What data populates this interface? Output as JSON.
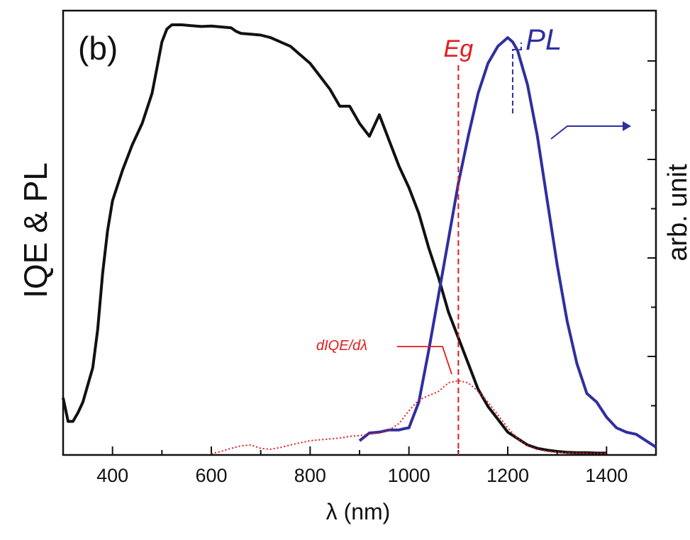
{
  "chart_data": {
    "type": "line",
    "panel_label": "(b)",
    "xlabel": "λ (nm)",
    "ylabel_left": "IQE & PL",
    "ylabel_right": "arb. unit",
    "xlim": [
      300,
      1500
    ],
    "ylim": [
      0,
      1.0
    ],
    "x_ticks": [
      400,
      600,
      800,
      1000,
      1200,
      1400
    ],
    "grid": false,
    "series": [
      {
        "name": "IQE",
        "color": "#111111",
        "style": "solid",
        "x": [
          300,
          310,
          320,
          330,
          340,
          350,
          360,
          370,
          380,
          390,
          400,
          420,
          440,
          460,
          480,
          490,
          500,
          510,
          520,
          530,
          540,
          550,
          560,
          580,
          600,
          620,
          640,
          650,
          660,
          680,
          700,
          720,
          740,
          760,
          780,
          800,
          820,
          840,
          860,
          880,
          900,
          920,
          940,
          960,
          980,
          1000,
          1020,
          1040,
          1060,
          1080,
          1100,
          1120,
          1140,
          1160,
          1180,
          1200,
          1220,
          1240,
          1260,
          1280,
          1300,
          1320,
          1340,
          1360,
          1380,
          1400
        ],
        "y": [
          0.13,
          0.075,
          0.075,
          0.095,
          0.12,
          0.16,
          0.2,
          0.29,
          0.42,
          0.52,
          0.59,
          0.66,
          0.72,
          0.77,
          0.84,
          0.9,
          0.96,
          0.99,
          1.0,
          1.0,
          1.0,
          0.999,
          0.998,
          0.996,
          0.997,
          0.995,
          0.993,
          0.985,
          0.98,
          0.978,
          0.976,
          0.97,
          0.96,
          0.95,
          0.93,
          0.91,
          0.88,
          0.85,
          0.81,
          0.81,
          0.77,
          0.74,
          0.79,
          0.73,
          0.67,
          0.62,
          0.56,
          0.48,
          0.41,
          0.33,
          0.27,
          0.21,
          0.15,
          0.11,
          0.08,
          0.05,
          0.035,
          0.02,
          0.012,
          0.008,
          0.005,
          0.003,
          0.002,
          0.002,
          0.001,
          0.001
        ]
      },
      {
        "name": "PL",
        "color": "#2f2fa0",
        "style": "solid",
        "x": [
          900,
          920,
          940,
          960,
          980,
          990,
          1000,
          1020,
          1040,
          1060,
          1080,
          1100,
          1120,
          1140,
          1160,
          1180,
          1200,
          1210,
          1220,
          1240,
          1260,
          1280,
          1300,
          1320,
          1340,
          1360,
          1380,
          1400,
          1420,
          1440,
          1460,
          1480,
          1500
        ],
        "y": [
          0.03,
          0.048,
          0.05,
          0.055,
          0.055,
          0.058,
          0.06,
          0.12,
          0.24,
          0.37,
          0.5,
          0.63,
          0.74,
          0.84,
          0.91,
          0.95,
          0.97,
          0.96,
          0.94,
          0.86,
          0.74,
          0.59,
          0.44,
          0.31,
          0.21,
          0.14,
          0.12,
          0.085,
          0.06,
          0.05,
          0.045,
          0.03,
          0.015
        ]
      },
      {
        "name": "dIQE/dλ",
        "color": "#e41a1c",
        "style": "dotted",
        "x": [
          600,
          620,
          640,
          660,
          680,
          700,
          720,
          740,
          760,
          780,
          800,
          820,
          840,
          860,
          880,
          900,
          920,
          940,
          960,
          980,
          1000,
          1020,
          1040,
          1060,
          1080,
          1100,
          1120,
          1140,
          1160,
          1180,
          1200,
          1220,
          1240,
          1260,
          1280,
          1300,
          1320,
          1340,
          1360,
          1380,
          1400
        ],
        "y": [
          0.0,
          0.005,
          0.012,
          0.018,
          0.02,
          0.012,
          0.01,
          0.014,
          0.02,
          0.025,
          0.03,
          0.032,
          0.034,
          0.036,
          0.04,
          0.042,
          0.045,
          0.048,
          0.055,
          0.07,
          0.1,
          0.125,
          0.135,
          0.145,
          0.165,
          0.17,
          0.165,
          0.145,
          0.12,
          0.09,
          0.06,
          0.035,
          0.018,
          0.01,
          0.005,
          0.003,
          0.002,
          0.001,
          0.001,
          0.0,
          0.0
        ]
      }
    ],
    "annotations": {
      "eg_label": "Eg",
      "eg_x": 1100,
      "pl_label": "PL",
      "pl_peak_x": 1210,
      "diqe_label": "dIQE/dλ"
    }
  }
}
